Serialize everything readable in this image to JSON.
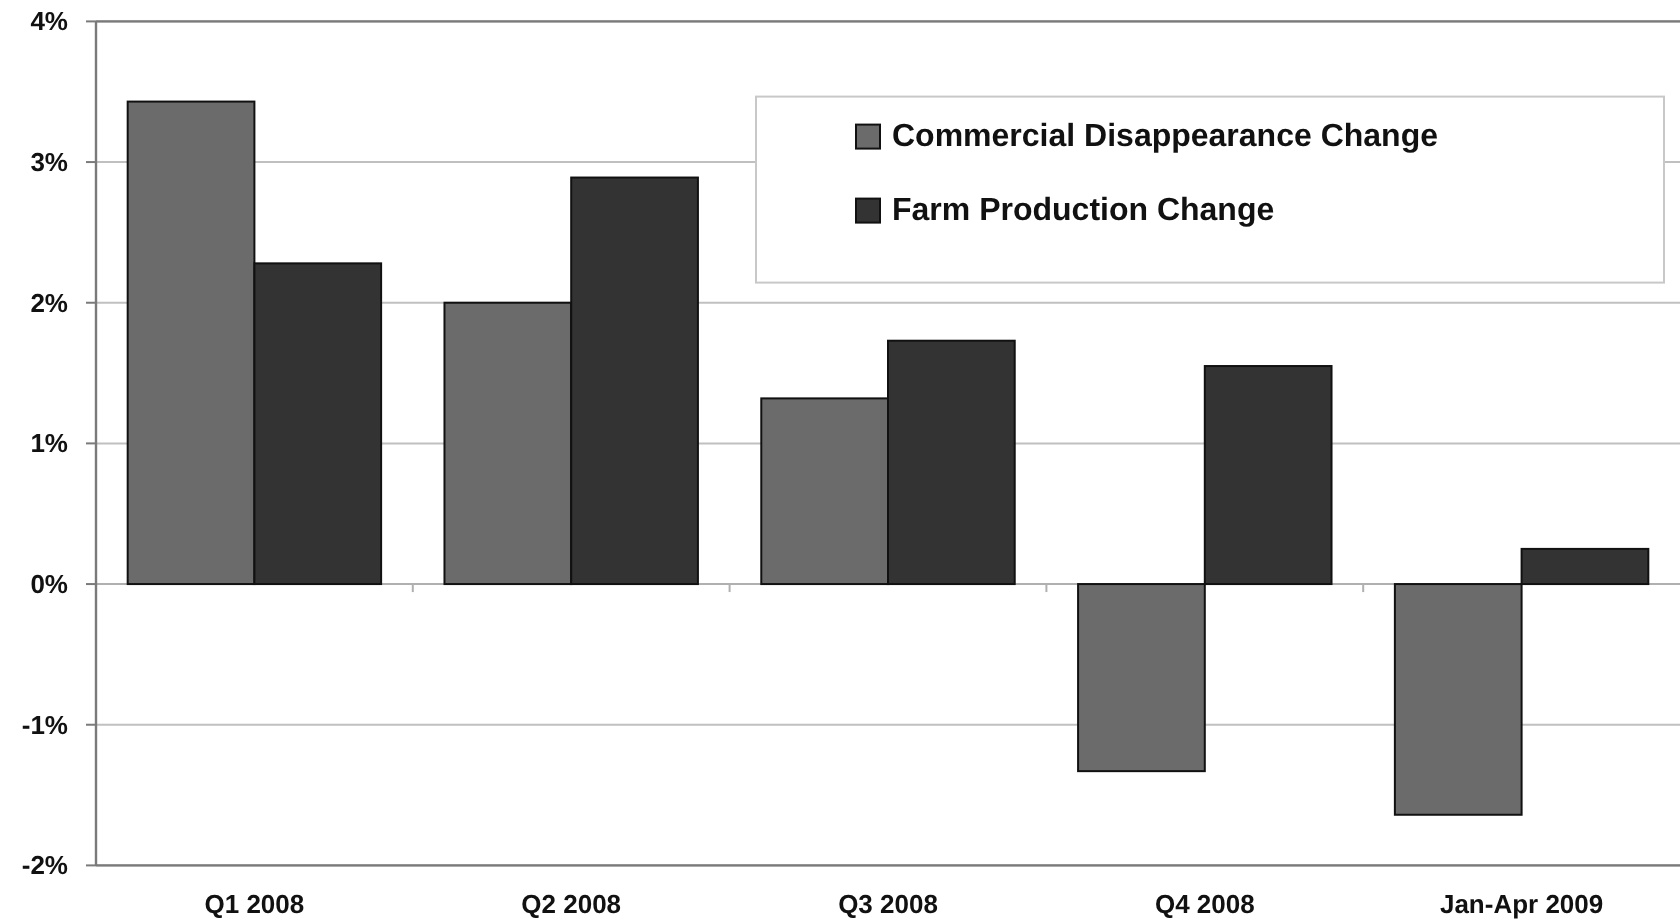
{
  "chart_data": {
    "type": "bar",
    "categories": [
      "Q1 2008",
      "Q2 2008",
      "Q3 2008",
      "Q4 2008",
      "Jan-Apr 2009"
    ],
    "series": [
      {
        "name": "Commercial Disappearance Change",
        "color": "#6b6b6b",
        "values": [
          3.43,
          2.0,
          1.32,
          -1.33,
          -1.64
        ]
      },
      {
        "name": "Farm Production Change",
        "color": "#333333",
        "values": [
          2.28,
          2.89,
          1.73,
          1.55,
          0.25
        ]
      }
    ],
    "ylim": [
      -2,
      4
    ],
    "yticks": [
      {
        "value": -2,
        "label": "-2%"
      },
      {
        "value": -1,
        "label": "-1%"
      },
      {
        "value": 0,
        "label": "0%"
      },
      {
        "value": 1,
        "label": "1%"
      },
      {
        "value": 2,
        "label": "2%"
      },
      {
        "value": 3,
        "label": "3%"
      },
      {
        "value": 4,
        "label": "4%"
      }
    ],
    "grid": "y",
    "legend": "top right"
  }
}
